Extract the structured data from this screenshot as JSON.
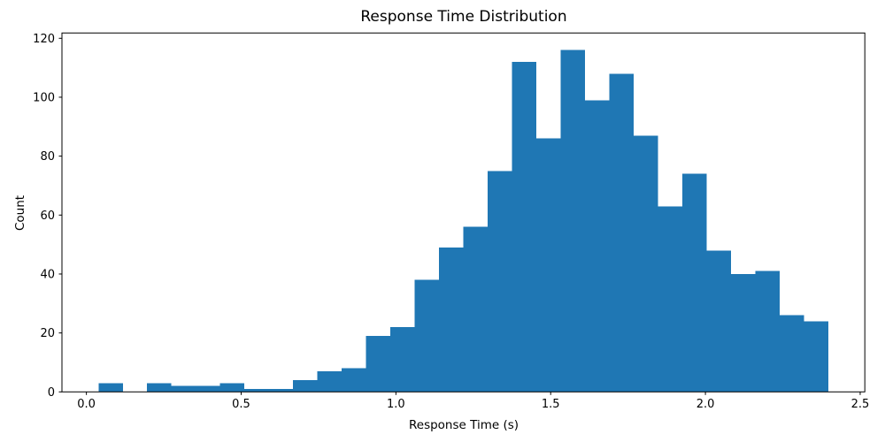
{
  "chart_data": {
    "type": "histogram",
    "title": "Response Time Distribution",
    "xlabel": "Response Time (s)",
    "ylabel": "Count",
    "bar_color": "#1f77b4",
    "background_color": "#ffffff",
    "grid": false,
    "legend_position": "none",
    "bin_start": 0.039,
    "bin_width": 0.0786,
    "bin_edges": [
      0.039,
      0.118,
      0.196,
      0.275,
      0.353,
      0.432,
      0.511,
      0.589,
      0.668,
      0.746,
      0.825,
      0.904,
      0.982,
      1.061,
      1.139,
      1.218,
      1.297,
      1.375,
      1.454,
      1.532,
      1.611,
      1.69,
      1.768,
      1.847,
      1.925,
      2.004,
      2.083,
      2.161,
      2.24,
      2.318,
      2.397
    ],
    "counts": [
      3,
      0,
      3,
      2,
      2,
      3,
      1,
      1,
      4,
      7,
      8,
      19,
      22,
      38,
      49,
      56,
      75,
      112,
      86,
      116,
      99,
      108,
      87,
      63,
      74,
      48,
      40,
      41,
      26,
      24
    ],
    "xlim": [
      -0.079,
      2.515
    ],
    "ylim": [
      0,
      121.8
    ],
    "x_ticks": {
      "values": [
        0.0,
        0.5,
        1.0,
        1.5,
        2.0,
        2.5
      ],
      "labels": [
        "0.0",
        "0.5",
        "1.0",
        "1.5",
        "2.0",
        "2.5"
      ]
    },
    "y_ticks": {
      "values": [
        0,
        20,
        40,
        60,
        80,
        100,
        120
      ],
      "labels": [
        "0",
        "20",
        "40",
        "60",
        "80",
        "100",
        "120"
      ]
    }
  }
}
